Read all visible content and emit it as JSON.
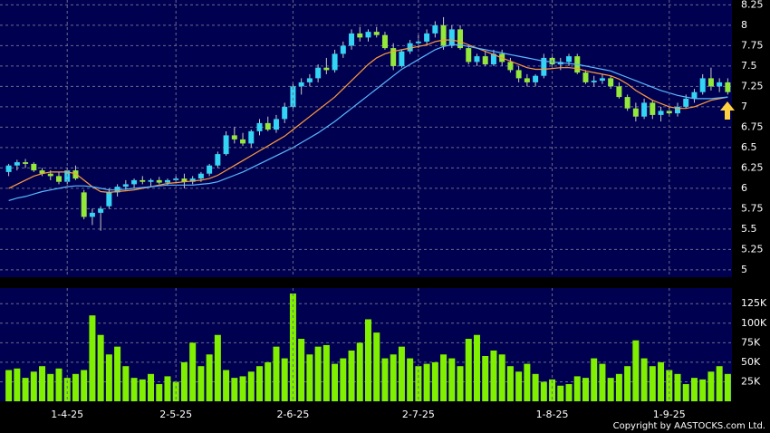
{
  "copyright": "Copyright by AASTOCKS.com Ltd.",
  "chart_data": [
    {
      "type": "candlestick",
      "up_color": "#33d4f4",
      "down_color": "#94e83a",
      "grid": true,
      "ylim": [
        4.91,
        8.31
      ],
      "yticks": [
        5,
        5.25,
        5.5,
        5.75,
        6,
        6.25,
        6.5,
        6.75,
        7,
        7.25,
        7.5,
        7.75,
        8,
        8.25
      ],
      "ohlc": [
        [
          6.2,
          6.3,
          6.15,
          6.28
        ],
        [
          6.28,
          6.35,
          6.22,
          6.32
        ],
        [
          6.32,
          6.36,
          6.25,
          6.3
        ],
        [
          6.3,
          6.32,
          6.2,
          6.22
        ],
        [
          6.22,
          6.25,
          6.15,
          6.18
        ],
        [
          6.18,
          6.22,
          6.1,
          6.15
        ],
        [
          6.15,
          6.2,
          6.05,
          6.08
        ],
        [
          6.08,
          6.25,
          6.05,
          6.22
        ],
        [
          6.22,
          6.28,
          6.1,
          6.12
        ],
        [
          5.95,
          5.98,
          5.62,
          5.65
        ],
        [
          5.65,
          5.75,
          5.55,
          5.7
        ],
        [
          5.7,
          5.78,
          5.48,
          5.75
        ],
        [
          5.78,
          6.0,
          5.75,
          5.95
        ],
        [
          5.95,
          6.05,
          5.9,
          6.02
        ],
        [
          6.02,
          6.1,
          5.98,
          6.05
        ],
        [
          6.05,
          6.12,
          6.0,
          6.1
        ],
        [
          6.1,
          6.15,
          6.05,
          6.08
        ],
        [
          6.08,
          6.12,
          6.02,
          6.1
        ],
        [
          6.1,
          6.14,
          6.05,
          6.07
        ],
        [
          6.07,
          6.12,
          6.03,
          6.1
        ],
        [
          6.1,
          6.15,
          6.06,
          6.12
        ],
        [
          6.12,
          6.18,
          6.0,
          6.08
        ],
        [
          6.08,
          6.15,
          6.05,
          6.12
        ],
        [
          6.12,
          6.2,
          6.08,
          6.18
        ],
        [
          6.18,
          6.3,
          6.15,
          6.28
        ],
        [
          6.28,
          6.45,
          6.25,
          6.42
        ],
        [
          6.42,
          6.7,
          6.4,
          6.65
        ],
        [
          6.65,
          6.75,
          6.55,
          6.6
        ],
        [
          6.6,
          6.68,
          6.52,
          6.55
        ],
        [
          6.55,
          6.72,
          6.5,
          6.7
        ],
        [
          6.7,
          6.85,
          6.65,
          6.8
        ],
        [
          6.8,
          6.88,
          6.7,
          6.72
        ],
        [
          6.72,
          6.9,
          6.68,
          6.85
        ],
        [
          6.85,
          7.05,
          6.8,
          7.0
        ],
        [
          7.0,
          7.3,
          6.98,
          7.25
        ],
        [
          7.25,
          7.35,
          7.15,
          7.3
        ],
        [
          7.3,
          7.4,
          7.25,
          7.35
        ],
        [
          7.35,
          7.52,
          7.3,
          7.48
        ],
        [
          7.48,
          7.6,
          7.4,
          7.45
        ],
        [
          7.45,
          7.7,
          7.42,
          7.65
        ],
        [
          7.65,
          7.8,
          7.6,
          7.75
        ],
        [
          7.75,
          7.95,
          7.7,
          7.9
        ],
        [
          7.9,
          7.98,
          7.8,
          7.85
        ],
        [
          7.85,
          7.95,
          7.8,
          7.92
        ],
        [
          7.92,
          7.98,
          7.85,
          7.88
        ],
        [
          7.88,
          7.92,
          7.7,
          7.72
        ],
        [
          7.72,
          7.78,
          7.45,
          7.5
        ],
        [
          7.5,
          7.7,
          7.48,
          7.68
        ],
        [
          7.68,
          7.82,
          7.65,
          7.78
        ],
        [
          7.78,
          7.88,
          7.72,
          7.8
        ],
        [
          7.8,
          7.95,
          7.75,
          7.9
        ],
        [
          7.9,
          8.05,
          7.85,
          8.0
        ],
        [
          8.0,
          8.1,
          7.7,
          7.75
        ],
        [
          7.75,
          8.0,
          7.72,
          7.95
        ],
        [
          7.95,
          8.0,
          7.7,
          7.72
        ],
        [
          7.72,
          7.75,
          7.52,
          7.55
        ],
        [
          7.55,
          7.65,
          7.5,
          7.62
        ],
        [
          7.62,
          7.68,
          7.5,
          7.52
        ],
        [
          7.52,
          7.7,
          7.5,
          7.65
        ],
        [
          7.65,
          7.7,
          7.5,
          7.55
        ],
        [
          7.55,
          7.6,
          7.42,
          7.45
        ],
        [
          7.45,
          7.5,
          7.3,
          7.35
        ],
        [
          7.35,
          7.4,
          7.25,
          7.3
        ],
        [
          7.3,
          7.4,
          7.25,
          7.38
        ],
        [
          7.38,
          7.65,
          7.35,
          7.6
        ],
        [
          7.6,
          7.65,
          7.48,
          7.52
        ],
        [
          7.52,
          7.6,
          7.45,
          7.55
        ],
        [
          7.55,
          7.65,
          7.5,
          7.62
        ],
        [
          7.62,
          7.65,
          7.4,
          7.42
        ],
        [
          7.42,
          7.45,
          7.28,
          7.3
        ],
        [
          7.3,
          7.38,
          7.25,
          7.32
        ],
        [
          7.32,
          7.4,
          7.28,
          7.35
        ],
        [
          7.35,
          7.38,
          7.22,
          7.25
        ],
        [
          7.25,
          7.3,
          7.1,
          7.12
        ],
        [
          7.12,
          7.15,
          6.95,
          6.98
        ],
        [
          6.98,
          7.05,
          6.82,
          6.88
        ],
        [
          6.88,
          7.1,
          6.85,
          7.05
        ],
        [
          7.05,
          7.08,
          6.85,
          6.9
        ],
        [
          6.9,
          7.0,
          6.82,
          6.95
        ],
        [
          6.95,
          7.0,
          6.88,
          6.92
        ],
        [
          6.92,
          7.05,
          6.88,
          7.0
        ],
        [
          7.0,
          7.15,
          6.98,
          7.1
        ],
        [
          7.1,
          7.22,
          7.05,
          7.18
        ],
        [
          7.18,
          7.4,
          7.15,
          7.35
        ],
        [
          7.35,
          7.48,
          7.2,
          7.25
        ],
        [
          7.25,
          7.35,
          7.18,
          7.3
        ],
        [
          7.3,
          7.35,
          7.15,
          7.18
        ]
      ],
      "series": [
        {
          "color": "#ff9a3c",
          "values": [
            6.0,
            6.05,
            6.1,
            6.15,
            6.18,
            6.2,
            6.2,
            6.2,
            6.18,
            6.1,
            6.02,
            5.96,
            5.95,
            5.96,
            5.97,
            5.98,
            6.0,
            6.02,
            6.04,
            6.06,
            6.07,
            6.08,
            6.09,
            6.1,
            6.12,
            6.16,
            6.22,
            6.28,
            6.34,
            6.4,
            6.46,
            6.52,
            6.58,
            6.64,
            6.72,
            6.8,
            6.88,
            6.96,
            7.04,
            7.12,
            7.22,
            7.32,
            7.42,
            7.52,
            7.6,
            7.65,
            7.68,
            7.7,
            7.72,
            7.74,
            7.76,
            7.8,
            7.82,
            7.82,
            7.8,
            7.76,
            7.72,
            7.68,
            7.64,
            7.6,
            7.56,
            7.52,
            7.48,
            7.46,
            7.46,
            7.47,
            7.48,
            7.48,
            7.47,
            7.44,
            7.42,
            7.4,
            7.38,
            7.34,
            7.28,
            7.2,
            7.14,
            7.08,
            7.04,
            7.0,
            6.98,
            6.98,
            7.0,
            7.04,
            7.08,
            7.1,
            7.12
          ]
        },
        {
          "color": "#5ab8ff",
          "values": [
            5.85,
            5.88,
            5.9,
            5.93,
            5.96,
            5.98,
            6.0,
            6.02,
            6.03,
            6.03,
            6.02,
            6.0,
            5.98,
            5.98,
            5.99,
            6.0,
            6.01,
            6.02,
            6.03,
            6.04,
            6.04,
            6.04,
            6.04,
            6.05,
            6.06,
            6.08,
            6.12,
            6.16,
            6.2,
            6.25,
            6.3,
            6.35,
            6.4,
            6.45,
            6.5,
            6.56,
            6.62,
            6.68,
            6.75,
            6.82,
            6.9,
            6.98,
            7.06,
            7.14,
            7.22,
            7.3,
            7.38,
            7.46,
            7.52,
            7.58,
            7.64,
            7.7,
            7.74,
            7.76,
            7.76,
            7.74,
            7.72,
            7.7,
            7.68,
            7.66,
            7.64,
            7.62,
            7.6,
            7.58,
            7.56,
            7.55,
            7.54,
            7.53,
            7.52,
            7.5,
            7.48,
            7.46,
            7.44,
            7.4,
            7.36,
            7.32,
            7.28,
            7.24,
            7.2,
            7.17,
            7.14,
            7.12,
            7.1,
            7.1,
            7.1,
            7.11,
            7.12
          ]
        }
      ]
    },
    {
      "type": "bar",
      "color": "#80f000",
      "grid": true,
      "ylim": [
        0,
        145000
      ],
      "yticks": [
        {
          "value": 25000,
          "label": "25K"
        },
        {
          "value": 50000,
          "label": "50K"
        },
        {
          "value": 75000,
          "label": "75K"
        },
        {
          "value": 100000,
          "label": "100K"
        },
        {
          "value": 125000,
          "label": "125K"
        }
      ],
      "categories": [
        null,
        null,
        null,
        null,
        null,
        null,
        null,
        "1-4-25",
        null,
        null,
        null,
        null,
        null,
        null,
        null,
        null,
        null,
        null,
        null,
        null,
        "2-5-25",
        null,
        null,
        null,
        null,
        null,
        null,
        null,
        null,
        null,
        null,
        null,
        null,
        null,
        "2-6-25",
        null,
        null,
        null,
        null,
        null,
        null,
        null,
        null,
        null,
        null,
        null,
        null,
        null,
        null,
        "2-7-25",
        null,
        null,
        null,
        null,
        null,
        null,
        null,
        null,
        null,
        null,
        null,
        null,
        null,
        null,
        null,
        "1-8-25",
        null,
        null,
        null,
        null,
        null,
        null,
        null,
        null,
        null,
        null,
        null,
        null,
        null,
        "1-9-25",
        null,
        null,
        null,
        null,
        null,
        null,
        null
      ],
      "values": [
        40000,
        42000,
        30000,
        38000,
        45000,
        35000,
        42000,
        30000,
        35000,
        40000,
        110000,
        85000,
        60000,
        70000,
        45000,
        30000,
        28000,
        35000,
        22000,
        32000,
        25000,
        50000,
        75000,
        45000,
        60000,
        85000,
        40000,
        30000,
        32000,
        38000,
        45000,
        50000,
        70000,
        55000,
        138000,
        80000,
        60000,
        70000,
        72000,
        48000,
        55000,
        65000,
        75000,
        105000,
        88000,
        55000,
        60000,
        70000,
        55000,
        45000,
        48000,
        50000,
        60000,
        55000,
        45000,
        80000,
        85000,
        58000,
        65000,
        60000,
        45000,
        38000,
        48000,
        35000,
        25000,
        28000,
        20000,
        22000,
        32000,
        30000,
        55000,
        48000,
        30000,
        35000,
        45000,
        78000,
        55000,
        45000,
        50000,
        40000,
        35000,
        22000,
        30000,
        28000,
        38000,
        45000,
        35000
      ]
    }
  ]
}
